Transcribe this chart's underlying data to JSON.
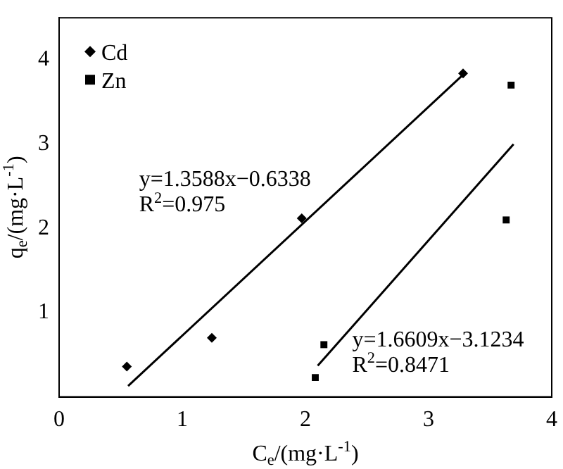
{
  "chart_data": {
    "type": "scatter",
    "xlabel": "C$_{e}$/(mg·L$^{-1}$)",
    "ylabel": "q$_{e}$/(mg·L$^{-1}$)",
    "xlim": [
      0,
      4
    ],
    "xticks": [
      0,
      1,
      2,
      3,
      4
    ],
    "ylim": [
      0,
      4.5
    ],
    "yticks": [
      1,
      2,
      3,
      4
    ],
    "grid": false,
    "legend": "top left",
    "series": [
      {
        "name": "Cd",
        "color": "#000000",
        "marker": "diamond",
        "x": [
          0.55,
          1.24,
          1.97,
          3.28
        ],
        "values": [
          0.36,
          0.7,
          2.12,
          3.84
        ]
      },
      {
        "name": "Zn",
        "color": "#000000",
        "marker": "square",
        "x": [
          2.08,
          2.15,
          3.63,
          3.67
        ],
        "values": [
          0.23,
          0.62,
          2.1,
          3.7
        ]
      },
      {
        "type": "line",
        "color": "#000000",
        "marker": "none",
        "x": [
          0.56,
          3.3
        ],
        "values": [
          0.13,
          3.85
        ]
      },
      {
        "type": "line",
        "color": "#000000",
        "marker": "none",
        "x": [
          2.1,
          3.69
        ],
        "values": [
          0.37,
          3.0
        ]
      }
    ],
    "annotations": [
      "y=1.3588x−0.6338",
      "R$^{2}$=0.975",
      "y=1.6609x−3.1234",
      "R$^{2}$=0.8471"
    ]
  }
}
